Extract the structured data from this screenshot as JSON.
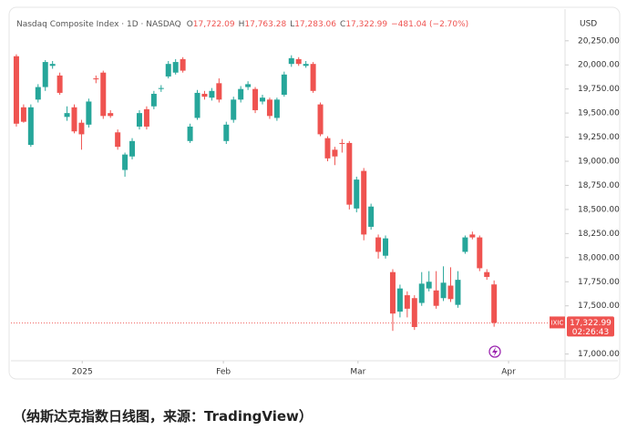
{
  "chart_data": {
    "type": "candlestick",
    "header": {
      "symbol": "Nasdaq Composite Index · 1D · NASDAQ",
      "fields": [
        {
          "label": "O",
          "value": "17,722.09"
        },
        {
          "label": "H",
          "value": "17,763.28"
        },
        {
          "label": "L",
          "value": "17,283.06"
        },
        {
          "label": "C",
          "value": "17,322.99"
        }
      ],
      "change": "−481.04 (−2.70%)"
    },
    "currency": "USD",
    "ticker_tag": "IXIC",
    "last_price_label": "17,322.99",
    "countdown": "02:26:43",
    "up_color": "#26a69a",
    "down_color": "#ef5350",
    "x": [
      0,
      1,
      2,
      3,
      4,
      5,
      6,
      7,
      8,
      9,
      10,
      11,
      12,
      13,
      14,
      15,
      16,
      17,
      18,
      19,
      20,
      21,
      22,
      23,
      24,
      25,
      26,
      27,
      28,
      29,
      30,
      31,
      32,
      33,
      34,
      35,
      36,
      37,
      38,
      39,
      40,
      41,
      42,
      43,
      44,
      45,
      46,
      47,
      48,
      49,
      50,
      51,
      52,
      53,
      54,
      55,
      56,
      57,
      58,
      59,
      60,
      61,
      62,
      63,
      64,
      65,
      66
    ],
    "open": [
      20090,
      19560,
      19170,
      19640,
      19770,
      19990,
      19890,
      19460,
      19560,
      19400,
      19380,
      19860,
      19920,
      19500,
      19300,
      18910,
      19050,
      19360,
      19540,
      19570,
      19750,
      19880,
      19920,
      20060,
      19210,
      19450,
      19700,
      19660,
      19810,
      19210,
      19430,
      19640,
      19770,
      19750,
      19620,
      19640,
      19450,
      19690,
      20010,
      20060,
      19990,
      20010,
      19590,
      19240,
      19120,
      19190,
      19190,
      18510,
      18900,
      18320,
      18210,
      18020,
      17850,
      17440,
      17610,
      17580,
      17530,
      17680,
      17660,
      17580,
      17710,
      17510,
      18060,
      18240,
      18210,
      17850,
      17722.09
    ],
    "high": [
      20110,
      19590,
      19590,
      19800,
      20050,
      20040,
      19920,
      19570,
      19590,
      19430,
      19650,
      19890,
      19940,
      19530,
      19330,
      19090,
      19240,
      19530,
      19570,
      19730,
      19790,
      20040,
      20060,
      20080,
      19390,
      19740,
      19730,
      19760,
      19860,
      19410,
      19670,
      19780,
      19830,
      19770,
      19690,
      19660,
      19660,
      19930,
      20100,
      20080,
      20040,
      20030,
      19610,
      19260,
      19150,
      19230,
      19210,
      18840,
      18930,
      18560,
      18240,
      18230,
      17880,
      17720,
      17650,
      17610,
      17850,
      17860,
      17860,
      17910,
      17900,
      17860,
      18230,
      18270,
      18230,
      17880,
      17763.28
    ],
    "low": [
      19360,
      19400,
      19150,
      19610,
      19730,
      19960,
      19690,
      19420,
      19290,
      19120,
      19350,
      19810,
      19440,
      19450,
      19120,
      18840,
      19020,
      19330,
      19330,
      19540,
      19720,
      19860,
      19900,
      19920,
      19190,
      19430,
      19640,
      19630,
      19610,
      19180,
      19400,
      19610,
      19740,
      19500,
      19590,
      19440,
      19420,
      19670,
      19980,
      19990,
      19970,
      19710,
      19260,
      19000,
      18960,
      19090,
      18500,
      18470,
      18180,
      18290,
      17990,
      17990,
      17240,
      17380,
      17380,
      17250,
      17500,
      17650,
      17470,
      17550,
      17540,
      17480,
      18040,
      18190,
      17860,
      17770,
      17283.06
    ],
    "close": [
      19390,
      19410,
      19560,
      19770,
      20030,
      20010,
      19710,
      19500,
      19310,
      19280,
      19620,
      19850,
      19470,
      19470,
      19150,
      19070,
      19210,
      19500,
      19360,
      19700,
      19760,
      20010,
      20030,
      19940,
      19360,
      19710,
      19670,
      19730,
      19640,
      19380,
      19640,
      19750,
      19800,
      19530,
      19660,
      19470,
      19640,
      19900,
      20070,
      20010,
      20010,
      19730,
      19280,
      19030,
      19050,
      19180,
      18550,
      18810,
      18240,
      18530,
      18060,
      18200,
      17420,
      17680,
      17470,
      17280,
      17730,
      17750,
      17500,
      17740,
      17570,
      17770,
      18210,
      18210,
      17890,
      17800,
      17322.99
    ],
    "xlim": [
      -0.75,
      75.8
    ],
    "xticks": [
      {
        "value": 9.1,
        "label": "2025"
      },
      {
        "value": 28.6,
        "label": "Feb"
      },
      {
        "value": 47.2,
        "label": "Mar"
      },
      {
        "value": 68,
        "label": "Apr"
      }
    ],
    "ylim": [
      16930,
      20560
    ],
    "yticks": [
      {
        "value": 17000,
        "label": "17,000.00"
      },
      {
        "value": 17500,
        "label": "17,500.00"
      },
      {
        "value": 17750,
        "label": "17,750.00"
      },
      {
        "value": 18000,
        "label": "18,000.00"
      },
      {
        "value": 18250,
        "label": "18,250.00"
      },
      {
        "value": 18500,
        "label": "18,500.00"
      },
      {
        "value": 18750,
        "label": "18,750.00"
      },
      {
        "value": 19000,
        "label": "19,000.00"
      },
      {
        "value": 19250,
        "label": "19,250.00"
      },
      {
        "value": 19500,
        "label": "19,500.00"
      },
      {
        "value": 19750,
        "label": "19,750.00"
      },
      {
        "value": 20000,
        "label": "20,000.00"
      },
      {
        "value": 20250,
        "label": "20,250.00"
      }
    ]
  },
  "caption": "（纳斯达克指数日线图，来源：TradingView）"
}
